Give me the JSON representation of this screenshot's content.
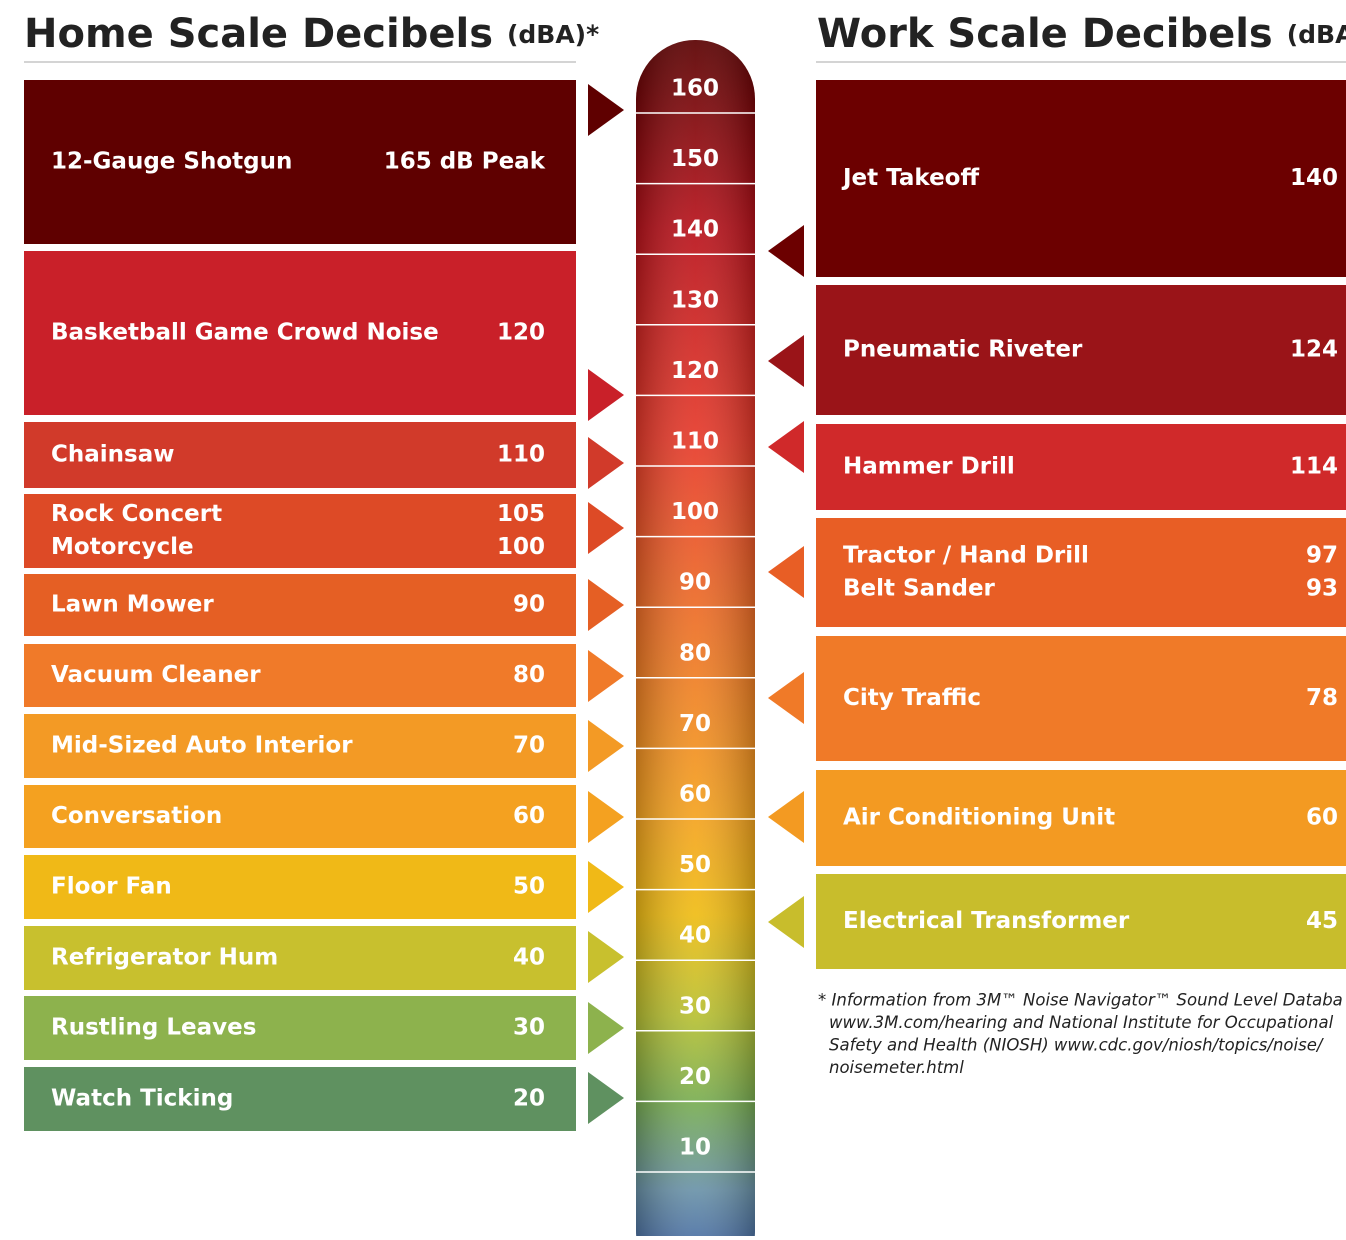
{
  "home": {
    "title": "Home Scale Decibels",
    "unit": "(dBA)*",
    "items": [
      {
        "color": "#5f0000",
        "rows": [
          {
            "label": "12-Gauge Shotgun",
            "value": "165 dB Peak"
          }
        ]
      },
      {
        "color": "#c92029",
        "rows": [
          {
            "label": "Basketball Game Crowd Noise",
            "value": "120"
          }
        ]
      },
      {
        "color": "#d13a2a",
        "rows": [
          {
            "label": "Chainsaw",
            "value": "110"
          }
        ]
      },
      {
        "color": "#dd4a26",
        "rows": [
          {
            "label": "Rock Concert",
            "value": "105"
          },
          {
            "label": "Motorcycle",
            "value": "100"
          }
        ]
      },
      {
        "color": "#e55f24",
        "rows": [
          {
            "label": "Lawn Mower",
            "value": "90"
          }
        ]
      },
      {
        "color": "#f07a29",
        "rows": [
          {
            "label": "Vacuum Cleaner",
            "value": "80"
          }
        ]
      },
      {
        "color": "#f39a25",
        "rows": [
          {
            "label": "Mid-Sized Auto Interior",
            "value": "70"
          }
        ]
      },
      {
        "color": "#f4a120",
        "rows": [
          {
            "label": "Conversation",
            "value": "60"
          }
        ]
      },
      {
        "color": "#f0b917",
        "rows": [
          {
            "label": "Floor Fan",
            "value": "50"
          }
        ]
      },
      {
        "color": "#c8c02e",
        "rows": [
          {
            "label": "Refrigerator Hum",
            "value": "40"
          }
        ]
      },
      {
        "color": "#8db24d",
        "rows": [
          {
            "label": "Rustling Leaves",
            "value": "30"
          }
        ]
      },
      {
        "color": "#5f9160",
        "rows": [
          {
            "label": "Watch Ticking",
            "value": "20"
          }
        ]
      }
    ]
  },
  "scale": [
    160,
    150,
    140,
    130,
    120,
    110,
    100,
    90,
    80,
    70,
    60,
    50,
    40,
    30,
    20,
    10
  ],
  "work": {
    "title": "Work Scale Decibels",
    "unit": "(dBA)*",
    "items": [
      {
        "color": "#6c0000",
        "rows": [
          {
            "label": "Jet Takeoff",
            "value": "140"
          }
        ]
      },
      {
        "color": "#9a1418",
        "rows": [
          {
            "label": "Pneumatic Riveter",
            "value": "124"
          }
        ]
      },
      {
        "color": "#d0292a",
        "rows": [
          {
            "label": "Hammer Drill",
            "value": "114"
          }
        ]
      },
      {
        "color": "#e85e25",
        "rows": [
          {
            "label": "Tractor / Hand Drill",
            "value": "97"
          },
          {
            "label": "Belt Sander",
            "value": "93"
          }
        ]
      },
      {
        "color": "#f07a28",
        "rows": [
          {
            "label": "City Traffic",
            "value": "78"
          }
        ]
      },
      {
        "color": "#f39a22",
        "rows": [
          {
            "label": "Air Conditioning Unit",
            "value": "60"
          }
        ]
      },
      {
        "color": "#c8bd2c",
        "rows": [
          {
            "label": "Electrical Transformer",
            "value": "45"
          }
        ]
      }
    ]
  },
  "footnote": [
    "* Information from 3M™ Noise Navigator™ Sound Level Databa",
    "www.3M.com/hearing and National Institute for Occupational",
    "Safety and Health (NIOSH)  www.cdc.gov/niosh/topics/noise/",
    "noisemeter.html"
  ]
}
